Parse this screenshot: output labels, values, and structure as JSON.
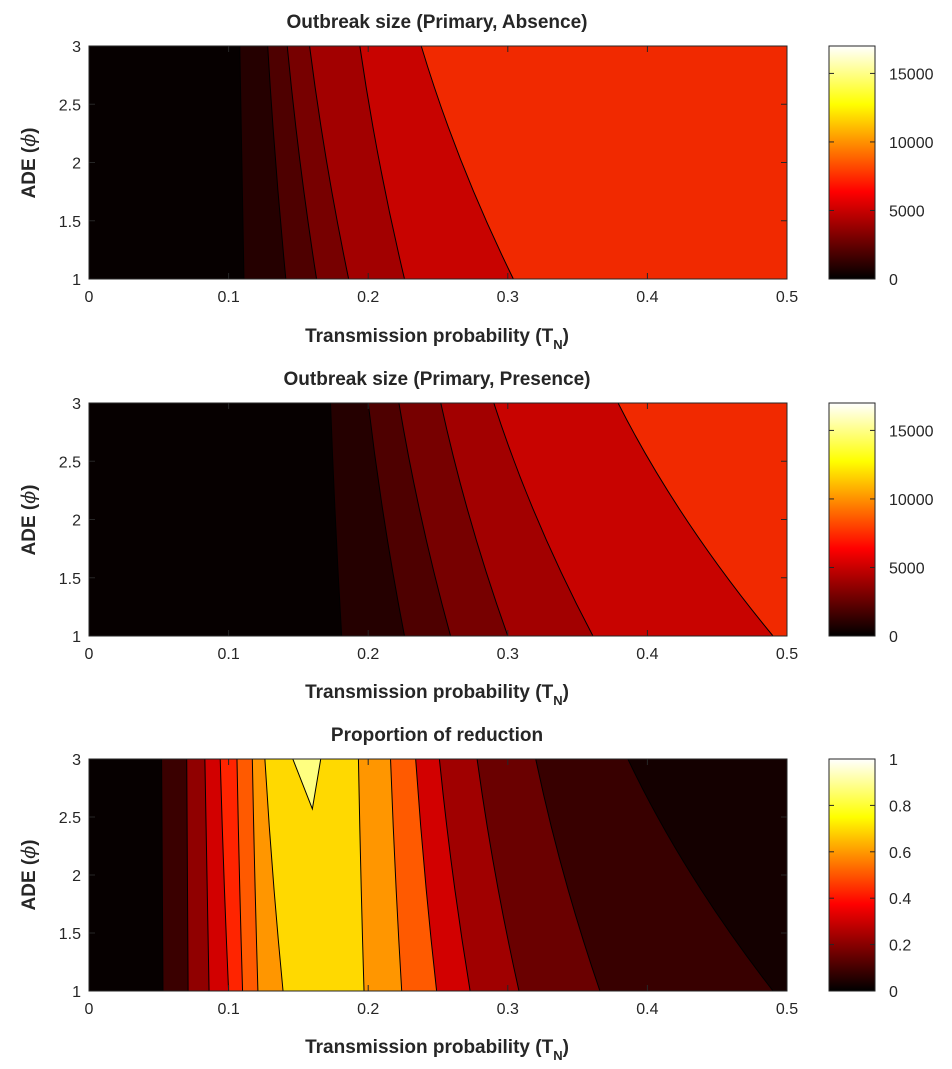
{
  "figure": {
    "background": "#ffffff"
  },
  "chart_data": [
    {
      "type": "heatmap",
      "subtype": "filled-contour",
      "title": "Outbreak size (Primary, Absence)",
      "xlabel": "Transmission probability (T",
      "xlabel_subscript": "N",
      "xlabel_close": ")",
      "ylabel": "ADE (",
      "ylabel_symbol": "ϕ",
      "ylabel_close": ")",
      "xlim": [
        0,
        0.5
      ],
      "ylim": [
        1,
        3
      ],
      "xticks": [
        0,
        0.1,
        0.2,
        0.3,
        0.4,
        0.5
      ],
      "xtick_labels": [
        "0",
        "0.1",
        "0.2",
        "0.3",
        "0.4",
        "0.5"
      ],
      "yticks": [
        1,
        1.5,
        2,
        2.5,
        3
      ],
      "ytick_labels": [
        "1",
        "1.5",
        "2",
        "2.5",
        "3"
      ],
      "colormap": "hot",
      "colorbar": {
        "range": [
          0,
          17000
        ],
        "ticks": [
          0,
          5000,
          10000,
          15000
        ],
        "tick_labels": [
          "0",
          "5000",
          "10000",
          "15000"
        ]
      },
      "regions": [
        {
          "level": 0.05,
          "color": "#060000",
          "x_at_y1": 0.0,
          "x_at_y3": 0.0
        },
        {
          "level": 0.12,
          "color": "#250000",
          "x_at_y1": 0.111,
          "x_at_y3": 0.108
        },
        {
          "level": 0.2,
          "color": "#4e0000",
          "x_at_y1": 0.141,
          "x_at_y3": 0.128
        },
        {
          "level": 0.27,
          "color": "#770000",
          "x_at_y1": 0.163,
          "x_at_y3": 0.142
        },
        {
          "level": 0.34,
          "color": "#a20000",
          "x_at_y1": 0.186,
          "x_at_y3": 0.158
        },
        {
          "level": 0.4,
          "color": "#c80300",
          "x_at_y1": 0.226,
          "x_at_y3": 0.194
        },
        {
          "level": 0.46,
          "color": "#f12900",
          "x_at_y1": 0.304,
          "x_at_y3": 0.238
        }
      ]
    },
    {
      "type": "heatmap",
      "subtype": "filled-contour",
      "title": "Outbreak size (Primary, Presence)",
      "xlabel": "Transmission probability (T",
      "xlabel_subscript": "N",
      "xlabel_close": ")",
      "ylabel": "ADE (",
      "ylabel_symbol": "ϕ",
      "ylabel_close": ")",
      "xlim": [
        0,
        0.5
      ],
      "ylim": [
        1,
        3
      ],
      "xticks": [
        0,
        0.1,
        0.2,
        0.3,
        0.4,
        0.5
      ],
      "xtick_labels": [
        "0",
        "0.1",
        "0.2",
        "0.3",
        "0.4",
        "0.5"
      ],
      "yticks": [
        1,
        1.5,
        2,
        2.5,
        3
      ],
      "ytick_labels": [
        "1",
        "1.5",
        "2",
        "2.5",
        "3"
      ],
      "colormap": "hot",
      "colorbar": {
        "range": [
          0,
          17000
        ],
        "ticks": [
          0,
          5000,
          10000,
          15000
        ],
        "tick_labels": [
          "0",
          "5000",
          "10000",
          "15000"
        ]
      },
      "regions": [
        {
          "level": 0.05,
          "color": "#060000",
          "x_at_y1": 0.0,
          "x_at_y3": 0.0
        },
        {
          "level": 0.12,
          "color": "#250000",
          "x_at_y1": 0.181,
          "x_at_y3": 0.173
        },
        {
          "level": 0.2,
          "color": "#4e0000",
          "x_at_y1": 0.226,
          "x_at_y3": 0.2
        },
        {
          "level": 0.27,
          "color": "#770000",
          "x_at_y1": 0.259,
          "x_at_y3": 0.222
        },
        {
          "level": 0.34,
          "color": "#a20000",
          "x_at_y1": 0.3,
          "x_at_y3": 0.252
        },
        {
          "level": 0.4,
          "color": "#c80300",
          "x_at_y1": 0.361,
          "x_at_y3": 0.29
        },
        {
          "level": 0.46,
          "color": "#f12900",
          "x_at_y1": 0.49,
          "x_at_y3": 0.379
        }
      ]
    },
    {
      "type": "heatmap",
      "subtype": "filled-contour",
      "title": "Proportion of reduction",
      "xlabel": "Transmission probability (T",
      "xlabel_subscript": "N",
      "xlabel_close": ")",
      "ylabel": "ADE (",
      "ylabel_symbol": "ϕ",
      "ylabel_close": ")",
      "xlim": [
        0,
        0.5
      ],
      "ylim": [
        1,
        3
      ],
      "xticks": [
        0,
        0.1,
        0.2,
        0.3,
        0.4,
        0.5
      ],
      "xtick_labels": [
        "0",
        "0.1",
        "0.2",
        "0.3",
        "0.4",
        "0.5"
      ],
      "yticks": [
        1,
        1.5,
        2,
        2.5,
        3
      ],
      "ytick_labels": [
        "1",
        "1.5",
        "2",
        "2.5",
        "3"
      ],
      "colormap": "hot",
      "colorbar": {
        "range": [
          0,
          1
        ],
        "ticks": [
          0,
          0.2,
          0.4,
          0.6,
          0.8,
          1
        ],
        "tick_labels": [
          "0",
          "0.2",
          "0.4",
          "0.6",
          "0.8",
          "1"
        ]
      },
      "regions": [
        {
          "level": 0.05,
          "color": "#060000",
          "x_at_y1": 0.0,
          "x_at_y3": 0.0
        },
        {
          "level": 0.15,
          "color": "#3a0000",
          "x_at_y1": 0.053,
          "x_at_y3": 0.052
        },
        {
          "level": 0.25,
          "color": "#900000",
          "x_at_y1": 0.071,
          "x_at_y3": 0.07
        },
        {
          "level": 0.35,
          "color": "#d20000",
          "x_at_y1": 0.086,
          "x_at_y3": 0.083
        },
        {
          "level": 0.45,
          "color": "#ff2400",
          "x_at_y1": 0.1,
          "x_at_y3": 0.094
        },
        {
          "level": 0.55,
          "color": "#ff5a00",
          "x_at_y1": 0.11,
          "x_at_y3": 0.106
        },
        {
          "level": 0.65,
          "color": "#ff9600",
          "x_at_y1": 0.121,
          "x_at_y3": 0.117
        },
        {
          "level": 0.8,
          "color": "#ffd900",
          "x_at_y1": 0.139,
          "x_at_y3": 0.126
        },
        {
          "level": 0.65,
          "color": "#ff9600",
          "x_at_y1": 0.197,
          "x_at_y3": 0.193
        },
        {
          "level": 0.55,
          "color": "#ff5a00",
          "x_at_y1": 0.224,
          "x_at_y3": 0.216
        },
        {
          "level": 0.45,
          "color": "#d20000",
          "x_at_y1": 0.249,
          "x_at_y3": 0.234
        },
        {
          "level": 0.35,
          "color": "#a00000",
          "x_at_y1": 0.273,
          "x_at_y3": 0.251
        },
        {
          "level": 0.25,
          "color": "#6a0000",
          "x_at_y1": 0.308,
          "x_at_y3": 0.278
        },
        {
          "level": 0.15,
          "color": "#380000",
          "x_at_y1": 0.366,
          "x_at_y3": 0.32
        },
        {
          "level": 0.08,
          "color": "#140000",
          "x_at_y1": 0.49,
          "x_at_y3": 0.386
        }
      ],
      "peak": {
        "color": "#ffff80",
        "x_left": 0.146,
        "x_tip": 0.16,
        "x_right": 0.166,
        "y_tip": 2.57
      }
    }
  ]
}
